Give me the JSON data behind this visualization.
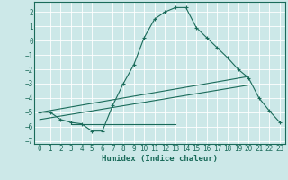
{
  "xlabel": "Humidex (Indice chaleur)",
  "bg_color": "#cce8e8",
  "grid_color": "#ffffff",
  "line_color": "#1a6b5a",
  "xlim": [
    -0.5,
    23.5
  ],
  "ylim": [
    -7.2,
    2.7
  ],
  "xticks": [
    0,
    1,
    2,
    3,
    4,
    5,
    6,
    7,
    8,
    9,
    10,
    11,
    12,
    13,
    14,
    15,
    16,
    17,
    18,
    19,
    20,
    21,
    22,
    23
  ],
  "yticks": [
    -7,
    -6,
    -5,
    -4,
    -3,
    -2,
    -1,
    0,
    1,
    2
  ],
  "curve1_x": [
    0,
    1,
    2,
    3,
    4,
    5,
    6,
    7,
    8,
    9,
    10,
    11,
    12,
    13,
    14,
    15,
    16,
    17,
    18,
    19,
    20,
    21,
    22,
    23
  ],
  "curve1_y": [
    -5.0,
    -5.0,
    -5.5,
    -5.7,
    -5.8,
    -6.3,
    -6.3,
    -4.5,
    -3.0,
    -1.7,
    0.2,
    1.5,
    2.0,
    2.3,
    2.3,
    0.9,
    0.2,
    -0.5,
    -1.2,
    -2.0,
    -2.6,
    -4.0,
    -4.9,
    -5.7
  ],
  "curve2_x": [
    0,
    20
  ],
  "curve2_y": [
    -5.0,
    -2.5
  ],
  "curve3_x": [
    0,
    20
  ],
  "curve3_y": [
    -5.5,
    -3.1
  ],
  "curve4_x": [
    3,
    13
  ],
  "curve4_y": [
    -5.8,
    -5.8
  ],
  "xlabel_fontsize": 6.5,
  "tick_fontsize": 5.5
}
